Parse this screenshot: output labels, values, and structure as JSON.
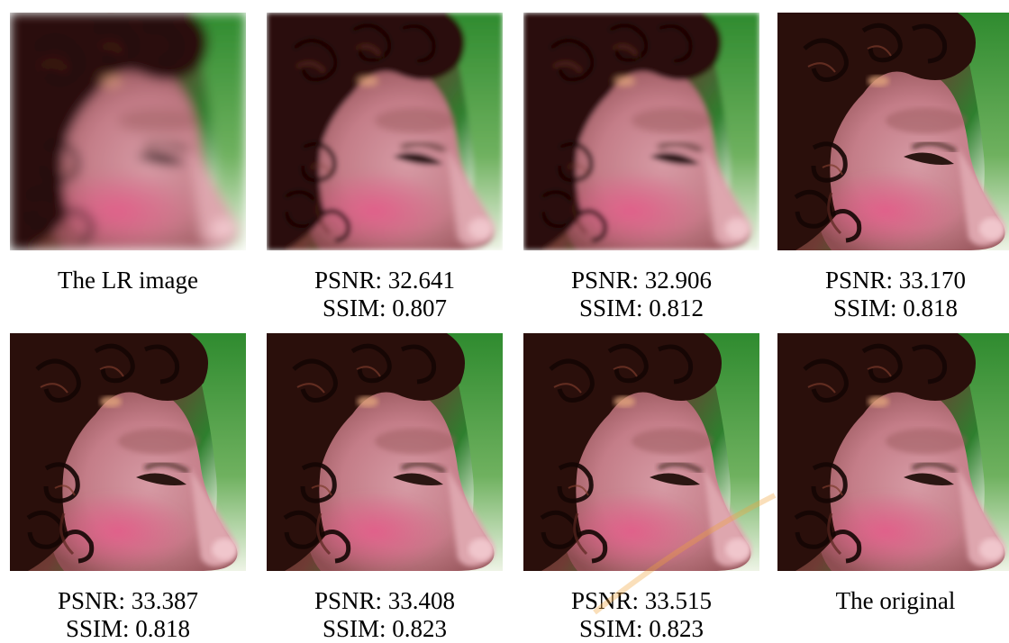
{
  "colors": {
    "background": "#ffffff",
    "text": "#000000",
    "skin": "#c9838c",
    "cheek": "#d85a83",
    "hair": "#2a0f0b",
    "foliage": "#3f9c3a",
    "highlight": "#f1eadc",
    "watermark": "#f2a33a"
  },
  "panels": [
    {
      "caption": "The LR image",
      "psnr": "",
      "ssim": ""
    },
    {
      "caption": "",
      "psnr": "PSNR: 32.641",
      "ssim": "SSIM: 0.807"
    },
    {
      "caption": "",
      "psnr": "PSNR: 32.906",
      "ssim": "SSIM: 0.812"
    },
    {
      "caption": "",
      "psnr": "PSNR: 33.170",
      "ssim": "SSIM: 0.818"
    },
    {
      "caption": "",
      "psnr": "PSNR: 33.387",
      "ssim": "SSIM: 0.818"
    },
    {
      "caption": "",
      "psnr": "PSNR: 33.408",
      "ssim": "SSIM: 0.823"
    },
    {
      "caption": "",
      "psnr": "PSNR: 33.515",
      "ssim": "SSIM: 0.823"
    },
    {
      "caption": "The original",
      "psnr": "",
      "ssim": ""
    }
  ]
}
